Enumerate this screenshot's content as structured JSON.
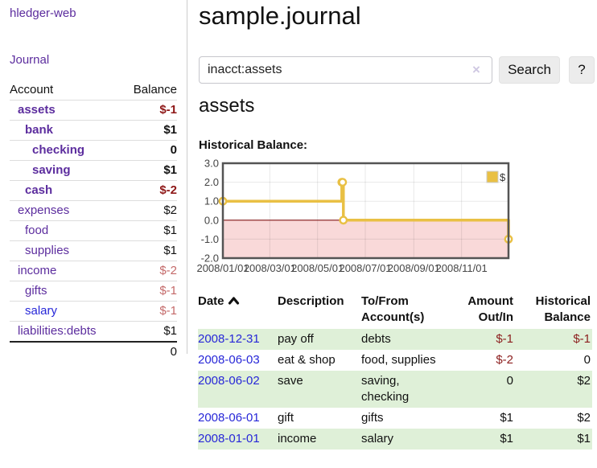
{
  "colors": {
    "link_purple": "#5c2d9e",
    "link_blue": "#2727d8",
    "negative_strong": "#8e1717",
    "negative_soft": "#c46a6a",
    "register_negative": "#8c1e1e",
    "row_green": "#dff0d8",
    "chart_gold": "#e9c044",
    "chart_negative_region": "#f9d9d9",
    "chart_zero_line": "#821414"
  },
  "sidebar": {
    "app_title": "hledger-web",
    "journal_label": "Journal",
    "accounts_table": {
      "headers": {
        "account": "Account",
        "balance": "Balance"
      },
      "rows": [
        {
          "label": "assets",
          "balance": "$-1",
          "depth": 1,
          "bold": true,
          "amount": "neg",
          "link": "purple"
        },
        {
          "label": "bank",
          "balance": "$1",
          "depth": 2,
          "bold": true,
          "amount": "pos",
          "link": "purple"
        },
        {
          "label": "checking",
          "balance": "0",
          "depth": 3,
          "bold": true,
          "amount": "pos",
          "link": "purple"
        },
        {
          "label": "saving",
          "balance": "$1",
          "depth": 3,
          "bold": true,
          "amount": "pos",
          "link": "purple"
        },
        {
          "label": "cash",
          "balance": "$-2",
          "depth": 2,
          "bold": true,
          "amount": "neg",
          "link": "purple"
        },
        {
          "label": "expenses",
          "balance": "$2",
          "depth": 1,
          "bold": false,
          "amount": "pos",
          "link": "purple"
        },
        {
          "label": "food",
          "balance": "$1",
          "depth": 2,
          "bold": false,
          "amount": "pos",
          "link": "purple"
        },
        {
          "label": "supplies",
          "balance": "$1",
          "depth": 2,
          "bold": false,
          "amount": "pos",
          "link": "purple"
        },
        {
          "label": "income",
          "balance": "$-2",
          "depth": 1,
          "bold": false,
          "amount": "neg-soft",
          "link": "purple"
        },
        {
          "label": "gifts",
          "balance": "$-1",
          "depth": 2,
          "bold": false,
          "amount": "neg-soft",
          "link": "purple"
        },
        {
          "label": "salary",
          "balance": "$-1",
          "depth": 2,
          "bold": false,
          "amount": "neg-soft",
          "link": "blue"
        },
        {
          "label": "liabilities:debts",
          "balance": "$1",
          "depth": 1,
          "bold": false,
          "amount": "pos",
          "link": "purple"
        }
      ],
      "total": "0"
    }
  },
  "main": {
    "title": "sample.journal",
    "search": {
      "value": "inacct:assets",
      "clear_icon": "×",
      "button_label": "Search",
      "help_button_label": "?"
    },
    "account_heading": "assets",
    "chart_label": "Historical Balance:"
  },
  "register": {
    "headers": {
      "date": "Date",
      "sort_icon": "caret-up",
      "description": "Description",
      "accounts": "To/From\nAccount(s)",
      "amount": "Amount\nOut/In",
      "balance": "Historical\nBalance"
    },
    "rows": [
      {
        "date": "2008-12-31",
        "description": "pay off",
        "accounts": "debts",
        "amount": "$-1",
        "amount_class": "neg",
        "balance": "$-1",
        "balance_class": "neg",
        "stripe": "green"
      },
      {
        "date": "2008-06-03",
        "description": "eat & shop",
        "accounts": "food, supplies",
        "amount": "$-2",
        "amount_class": "neg",
        "balance": "0",
        "balance_class": "pos",
        "stripe": "white"
      },
      {
        "date": "2008-06-02",
        "description": "save",
        "accounts": "saving,\nchecking",
        "amount": "0",
        "amount_class": "pos",
        "balance": "$2",
        "balance_class": "pos",
        "stripe": "green"
      },
      {
        "date": "2008-06-01",
        "description": "gift",
        "accounts": "gifts",
        "amount": "$1",
        "amount_class": "pos",
        "balance": "$2",
        "balance_class": "pos",
        "stripe": "white"
      },
      {
        "date": "2008-01-01",
        "description": "income",
        "accounts": "salary",
        "amount": "$1",
        "amount_class": "pos",
        "balance": "$1",
        "balance_class": "pos",
        "stripe": "green"
      }
    ]
  },
  "chart_data": {
    "type": "line",
    "title": "Historical Balance",
    "step": "after",
    "series": [
      {
        "name": "$",
        "color": "#e9c044",
        "points": [
          [
            "2008-01-01",
            1
          ],
          [
            "2008-06-01",
            2
          ],
          [
            "2008-06-02",
            2
          ],
          [
            "2008-06-03",
            0
          ],
          [
            "2008-12-31",
            -1
          ]
        ],
        "points_days": [
          [
            0,
            1
          ],
          [
            152,
            2
          ],
          [
            153,
            2
          ],
          [
            154,
            0
          ],
          [
            365,
            -1
          ]
        ]
      }
    ],
    "x_ticks": [
      "2008/01/01",
      "2008/03/01",
      "2008/05/01",
      "2008/07/01",
      "2008/09/01",
      "2008/11/01"
    ],
    "x_tick_days": [
      0,
      60,
      121,
      182,
      244,
      305
    ],
    "x_range_days": [
      0,
      365
    ],
    "y_ticks": [
      3,
      2,
      1,
      0,
      -1,
      -2
    ],
    "y_tick_labels": [
      "3.0",
      "2.0",
      "1.0",
      "0.0",
      "-1.0",
      "-2.0"
    ],
    "ylim": [
      -2,
      3
    ],
    "legend": {
      "label": "$",
      "position": "top-right"
    },
    "grid": true,
    "negative_region_color": "#f9d9d9",
    "zero_line_color": "#821414",
    "border_color": "#545454"
  }
}
